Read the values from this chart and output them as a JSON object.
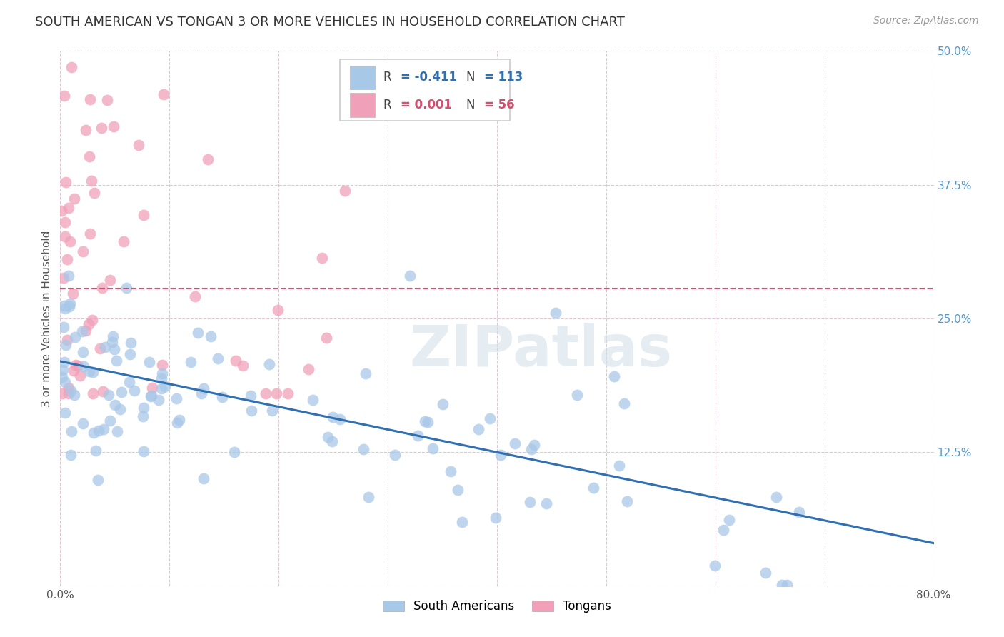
{
  "title": "SOUTH AMERICAN VS TONGAN 3 OR MORE VEHICLES IN HOUSEHOLD CORRELATION CHART",
  "source": "Source: ZipAtlas.com",
  "ylabel": "3 or more Vehicles in Household",
  "xlim": [
    0.0,
    0.8
  ],
  "ylim": [
    0.0,
    0.5
  ],
  "xticks": [
    0.0,
    0.1,
    0.2,
    0.3,
    0.4,
    0.5,
    0.6,
    0.7,
    0.8
  ],
  "xticklabels": [
    "0.0%",
    "",
    "",
    "",
    "",
    "",
    "",
    "",
    "80.0%"
  ],
  "yticks": [
    0.0,
    0.125,
    0.25,
    0.375,
    0.5
  ],
  "yticklabels": [
    "",
    "12.5%",
    "25.0%",
    "37.5%",
    "50.0%"
  ],
  "grid_color": "#ddc8d5",
  "background_color": "#ffffff",
  "blue_color": "#a8c8e8",
  "pink_color": "#f0a0b8",
  "blue_line_color": "#3070b0",
  "pink_line_color": "#d05070",
  "legend_blue_R": "-0.411",
  "legend_blue_N": "113",
  "legend_pink_R": "0.001",
  "legend_pink_N": "56",
  "blue_trend_x": [
    0.0,
    0.8
  ],
  "blue_trend_y": [
    0.21,
    0.04
  ],
  "pink_trend_x": [
    0.0,
    0.8
  ],
  "pink_trend_y": [
    0.278,
    0.278
  ],
  "title_fontsize": 13,
  "tick_fontsize": 11,
  "ylabel_fontsize": 11
}
